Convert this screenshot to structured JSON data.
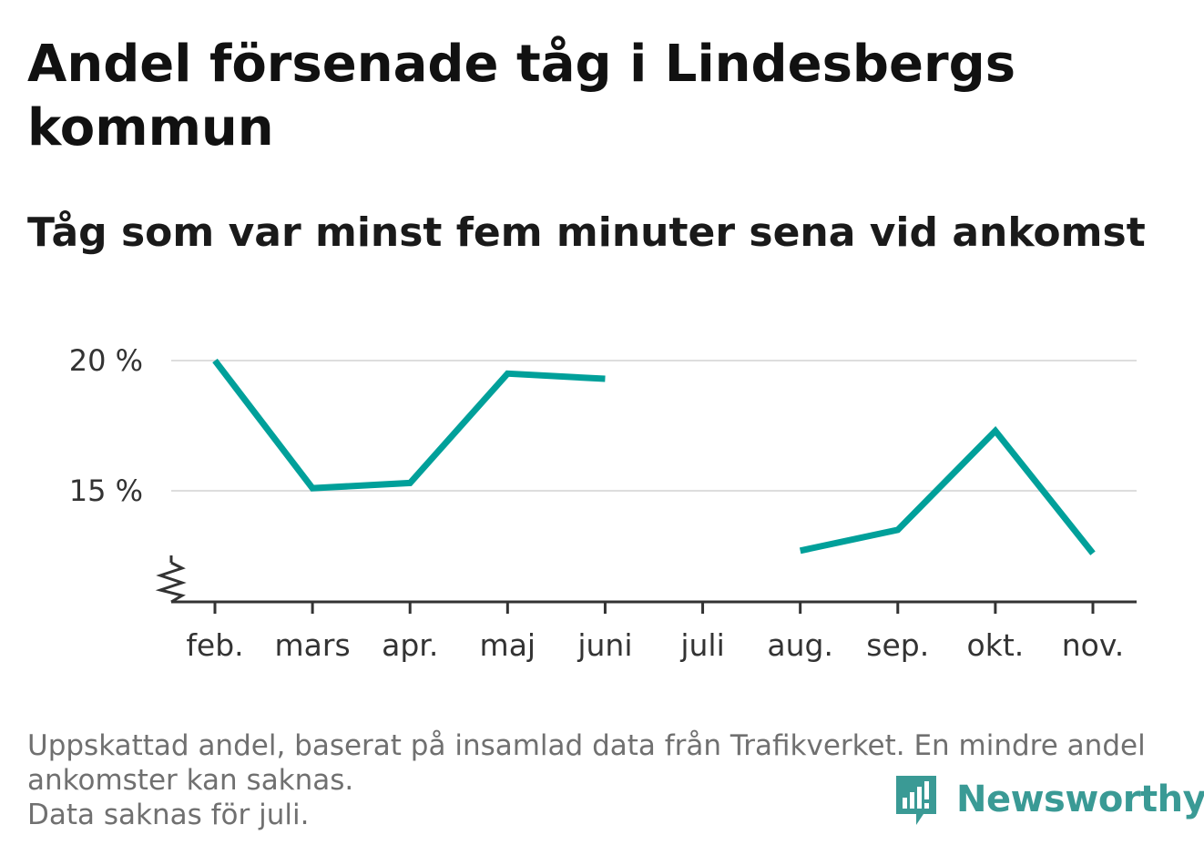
{
  "title": "Andel försenade tåg i Lindesbergs kommun",
  "subtitle": "Tåg som var minst fem minuter sena vid ankomst",
  "notes": [
    "Uppskattad andel, baserat på insamlad data från Trafikverket. En mindre andel",
    "ankomster kan saknas.",
    "Data saknas för juli."
  ],
  "brand": {
    "name": "Newsworthy",
    "logo_icon": "bar-chart-badge-icon"
  },
  "colors": {
    "line": "#00a09a",
    "grid": "#dddddd",
    "axis": "#333333",
    "brand": "#3a9a95"
  },
  "chart_data": {
    "type": "line",
    "x": [
      "feb.",
      "mars",
      "apr.",
      "maj",
      "juni",
      "juli",
      "aug.",
      "sep.",
      "okt.",
      "nov."
    ],
    "series": [
      {
        "values": [
          20.0,
          15.1,
          15.3,
          19.5,
          19.3,
          null,
          12.7,
          13.5,
          17.3,
          12.6
        ]
      }
    ],
    "yticks": [
      15,
      20
    ],
    "ytick_labels": [
      "15 %",
      "20 %"
    ],
    "ylim": [
      11.2,
      20
    ],
    "y_axis_break": true,
    "grid": true,
    "xlabel": "",
    "ylabel": ""
  }
}
